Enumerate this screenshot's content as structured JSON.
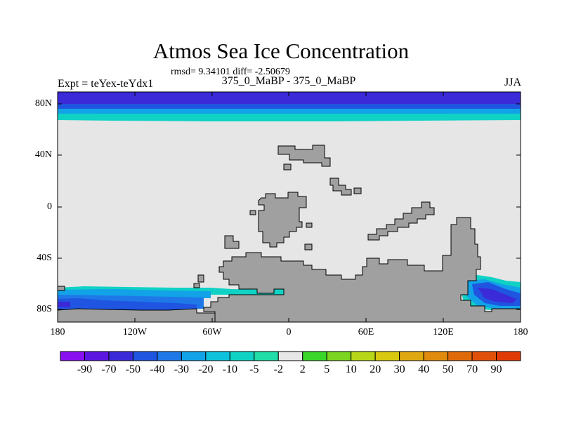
{
  "title": "Atmos Sea Ice Concentration",
  "subtitle": "rmsd= 9.34101  diff= -2.50679",
  "experiment": "Expt = teYex-teYdx1",
  "period": "375_0_MaBP - 375_0_MaBP",
  "season": "JJA",
  "axes": {
    "lat_labels": [
      "80N",
      "40N",
      "0",
      "40S",
      "80S"
    ],
    "lat_values": [
      80,
      40,
      0,
      -40,
      -80
    ],
    "lon_labels": [
      "180",
      "120W",
      "60W",
      "0",
      "60E",
      "120E",
      "180"
    ],
    "lon_values": [
      -180,
      -120,
      -60,
      0,
      60,
      120,
      180
    ],
    "lon_range": [
      -180,
      180
    ],
    "lat_range": [
      -90,
      90
    ]
  },
  "colorbar": {
    "labels": [
      "-90",
      "-70",
      "-50",
      "-40",
      "-30",
      "-20",
      "-10",
      "-5",
      "-2",
      "2",
      "5",
      "10",
      "20",
      "30",
      "40",
      "50",
      "70",
      "90"
    ],
    "colors": [
      "#8a0ff0",
      "#5b16e0",
      "#3a2ad8",
      "#1f55e0",
      "#1f78e8",
      "#12a2e8",
      "#0ec2dc",
      "#10d2c4",
      "#20dca6",
      "#e6e6e6",
      "#3ad62a",
      "#7ad420",
      "#b8d618",
      "#d8c810",
      "#e0a810",
      "#e08a0e",
      "#e06a0a",
      "#e05008",
      "#e03a06"
    ]
  },
  "colors": {
    "land": "#a0a0a0",
    "no_change": "#e6e6e6",
    "background": "#ffffff"
  }
}
